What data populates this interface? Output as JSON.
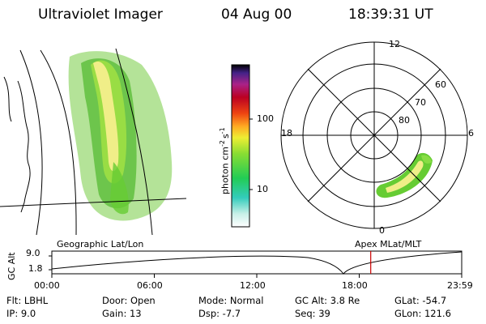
{
  "header": {
    "title": "Ultraviolet Imager",
    "date": "04 Aug 00",
    "time": "18:39:31 UT"
  },
  "colorbar": {
    "unit_label": "photon cm",
    "unit_exp1": "-2",
    "unit_mid": "s",
    "unit_exp2": "-1",
    "tick_100": "100",
    "tick_10": "10"
  },
  "polar_plot": {
    "mlt_labels": {
      "top": "12",
      "left": "18",
      "right": "6",
      "bottom": "0"
    },
    "lat_labels": {
      "outer": "60",
      "mid": "70",
      "inner": "80"
    }
  },
  "timeline": {
    "axis_title": "GC Alt",
    "y_max": "9.0",
    "y_min": "1.8",
    "left_label": "Geographic Lat/Lon",
    "right_label": "Apex MLat/MLT",
    "x_ticks": [
      "00:00",
      "06:00",
      "12:00",
      "18:00",
      "23:59"
    ],
    "current_marker_hour": 18.66
  },
  "info": {
    "col1": {
      "flt": "Flt:  LBHL",
      "ip": "IP:  9.0"
    },
    "col2": {
      "door": "Door:  Open",
      "gain": "Gain:  13"
    },
    "col3": {
      "mode": "Mode:  Normal",
      "dsp": "Dsp:     -7.7"
    },
    "col4": {
      "gcalt": "GC Alt:  3.8 Re",
      "seq": "Seq:  39"
    },
    "col5": {
      "glat": "GLat:   -54.7",
      "glon": "GLon:  121.6"
    }
  },
  "colors": {
    "line": "#000000",
    "marker": "#cc0000",
    "aurora_green": "#66cc33",
    "aurora_yellow": "#f0ee88"
  }
}
